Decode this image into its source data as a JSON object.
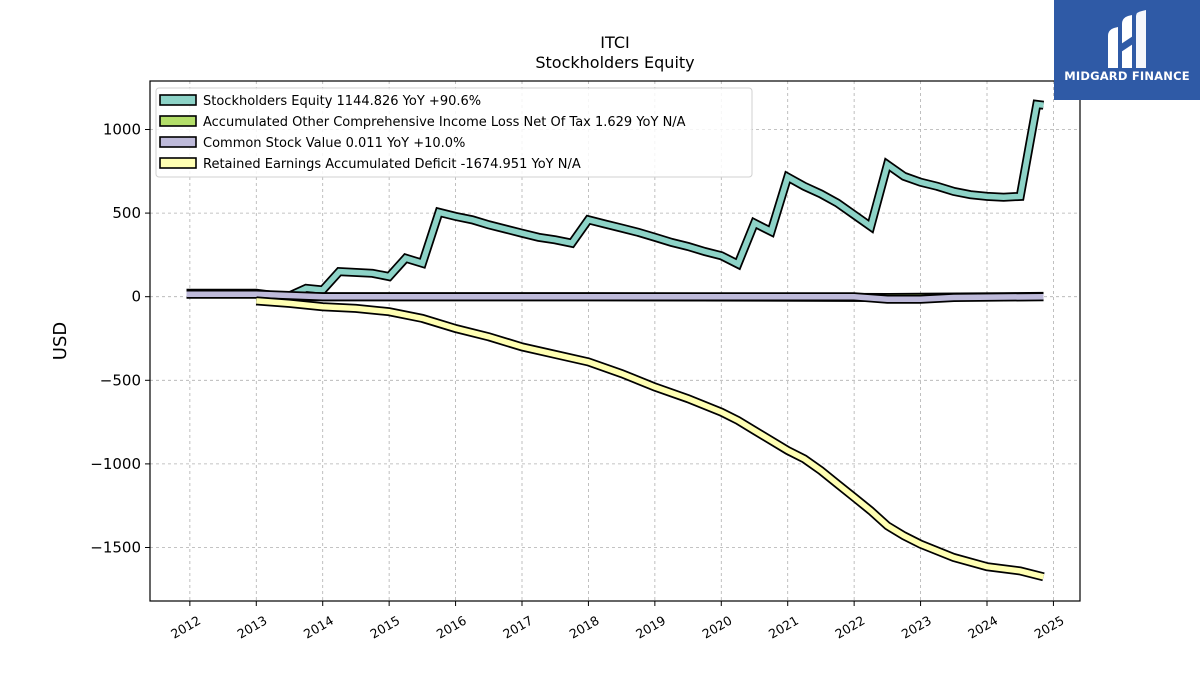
{
  "brand": {
    "name": "MIDGARD FINANCE",
    "icon": "midgard-logo-icon",
    "color": "#2f5aa6"
  },
  "chart_data": {
    "type": "line",
    "title": "ITCI",
    "subtitle": "Stockholders  Equity",
    "ylabel": "USD",
    "xlabel": "",
    "xlim": [
      2011.4,
      2025.4
    ],
    "ylim": [
      -1820,
      1290
    ],
    "yticks": [
      1000,
      500,
      0,
      -500,
      -1000,
      -1500
    ],
    "ytick_labels": [
      "1000",
      "500",
      "0",
      "−500",
      "−1000",
      "−1500"
    ],
    "xticks": [
      2012,
      2013,
      2014,
      2015,
      2016,
      2017,
      2018,
      2019,
      2020,
      2021,
      2022,
      2023,
      2024,
      2025
    ],
    "xtick_labels": [
      "2012",
      "2013",
      "2014",
      "2015",
      "2016",
      "2017",
      "2018",
      "2019",
      "2020",
      "2021",
      "2022",
      "2023",
      "2024",
      "2025"
    ],
    "grid": true,
    "legend_position": "top-left",
    "series": [
      {
        "name": "Stockholders Equity  1144.826 YoY +90.6%",
        "color": "#8dd3c7",
        "points": [
          [
            2011.95,
            20
          ],
          [
            2013.0,
            20
          ],
          [
            2013.25,
            8
          ],
          [
            2013.5,
            5
          ],
          [
            2013.75,
            50
          ],
          [
            2014.0,
            40
          ],
          [
            2014.25,
            150
          ],
          [
            2014.75,
            140
          ],
          [
            2015.0,
            120
          ],
          [
            2015.25,
            230
          ],
          [
            2015.5,
            200
          ],
          [
            2015.75,
            505
          ],
          [
            2016.0,
            480
          ],
          [
            2016.25,
            460
          ],
          [
            2016.5,
            430
          ],
          [
            2016.75,
            405
          ],
          [
            2017.0,
            380
          ],
          [
            2017.25,
            355
          ],
          [
            2017.5,
            340
          ],
          [
            2017.75,
            320
          ],
          [
            2018.0,
            460
          ],
          [
            2018.25,
            435
          ],
          [
            2018.5,
            410
          ],
          [
            2018.75,
            385
          ],
          [
            2019.0,
            355
          ],
          [
            2019.25,
            325
          ],
          [
            2019.5,
            300
          ],
          [
            2019.75,
            270
          ],
          [
            2020.0,
            245
          ],
          [
            2020.25,
            195
          ],
          [
            2020.5,
            440
          ],
          [
            2020.75,
            390
          ],
          [
            2021.0,
            715
          ],
          [
            2021.25,
            660
          ],
          [
            2021.5,
            615
          ],
          [
            2021.75,
            560
          ],
          [
            2022.0,
            490
          ],
          [
            2022.25,
            420
          ],
          [
            2022.5,
            790
          ],
          [
            2022.75,
            720
          ],
          [
            2023.0,
            685
          ],
          [
            2023.25,
            660
          ],
          [
            2023.5,
            630
          ],
          [
            2023.75,
            610
          ],
          [
            2024.0,
            600
          ],
          [
            2024.25,
            595
          ],
          [
            2024.5,
            600
          ],
          [
            2024.75,
            1150
          ],
          [
            2024.85,
            1145
          ]
        ]
      },
      {
        "name": "Accumulated Other Comprehensive Income Loss Net Of Tax  1.629 YoY N/A",
        "color": "#b3de69",
        "points": [
          [
            2013.0,
            0
          ],
          [
            2018.0,
            0
          ],
          [
            2022.5,
            -5
          ],
          [
            2023.0,
            -3
          ],
          [
            2024.85,
            1.6
          ]
        ]
      },
      {
        "name": "Common Stock Value  0.011 YoY +10.0%",
        "color": "#bebada",
        "points": [
          [
            2011.95,
            15
          ],
          [
            2013.0,
            15
          ],
          [
            2014.0,
            0
          ],
          [
            2016.0,
            0
          ],
          [
            2018.0,
            0
          ],
          [
            2022.0,
            0
          ],
          [
            2022.5,
            -15
          ],
          [
            2023.0,
            -15
          ],
          [
            2023.5,
            -5
          ],
          [
            2024.85,
            0
          ]
        ]
      },
      {
        "name": "Retained Earnings Accumulated Deficit  -1674.951 YoY N/A",
        "color": "#ffffb3",
        "points": [
          [
            2013.0,
            -25
          ],
          [
            2013.5,
            -40
          ],
          [
            2014.0,
            -60
          ],
          [
            2014.5,
            -70
          ],
          [
            2015.0,
            -90
          ],
          [
            2015.5,
            -130
          ],
          [
            2016.0,
            -190
          ],
          [
            2016.5,
            -240
          ],
          [
            2017.0,
            -300
          ],
          [
            2017.5,
            -345
          ],
          [
            2018.0,
            -390
          ],
          [
            2018.5,
            -460
          ],
          [
            2019.0,
            -540
          ],
          [
            2019.5,
            -610
          ],
          [
            2020.0,
            -690
          ],
          [
            2020.25,
            -740
          ],
          [
            2020.5,
            -800
          ],
          [
            2021.0,
            -920
          ],
          [
            2021.25,
            -970
          ],
          [
            2021.5,
            -1040
          ],
          [
            2021.75,
            -1120
          ],
          [
            2022.0,
            -1200
          ],
          [
            2022.25,
            -1280
          ],
          [
            2022.5,
            -1370
          ],
          [
            2022.75,
            -1430
          ],
          [
            2023.0,
            -1480
          ],
          [
            2023.5,
            -1560
          ],
          [
            2024.0,
            -1615
          ],
          [
            2024.5,
            -1640
          ],
          [
            2024.85,
            -1675
          ]
        ]
      }
    ]
  }
}
